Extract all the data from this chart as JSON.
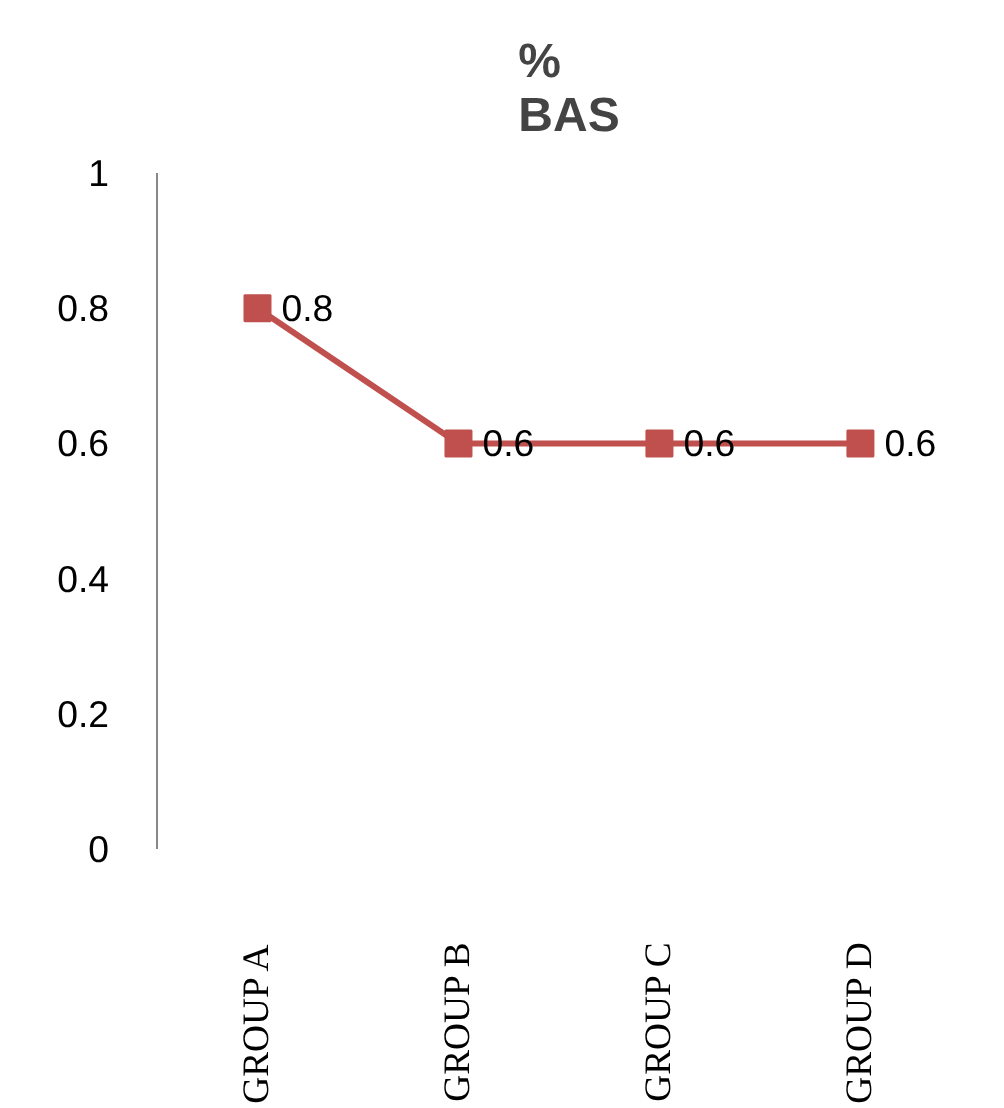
{
  "chart_data": {
    "type": "line",
    "title": "%\nBAS",
    "categories": [
      "GROUP A",
      "GROUP B",
      "GROUP C",
      "GROUP D"
    ],
    "series": [
      {
        "color": "#c0504d",
        "values": [
          0.8,
          0.6,
          0.6,
          0.6
        ]
      }
    ],
    "ylim": [
      0,
      1
    ],
    "yticks": [
      0,
      0.2,
      0.4,
      0.6,
      0.8,
      1
    ],
    "marker": "square",
    "line_style": "solid",
    "data_labels": true,
    "grid": false
  }
}
